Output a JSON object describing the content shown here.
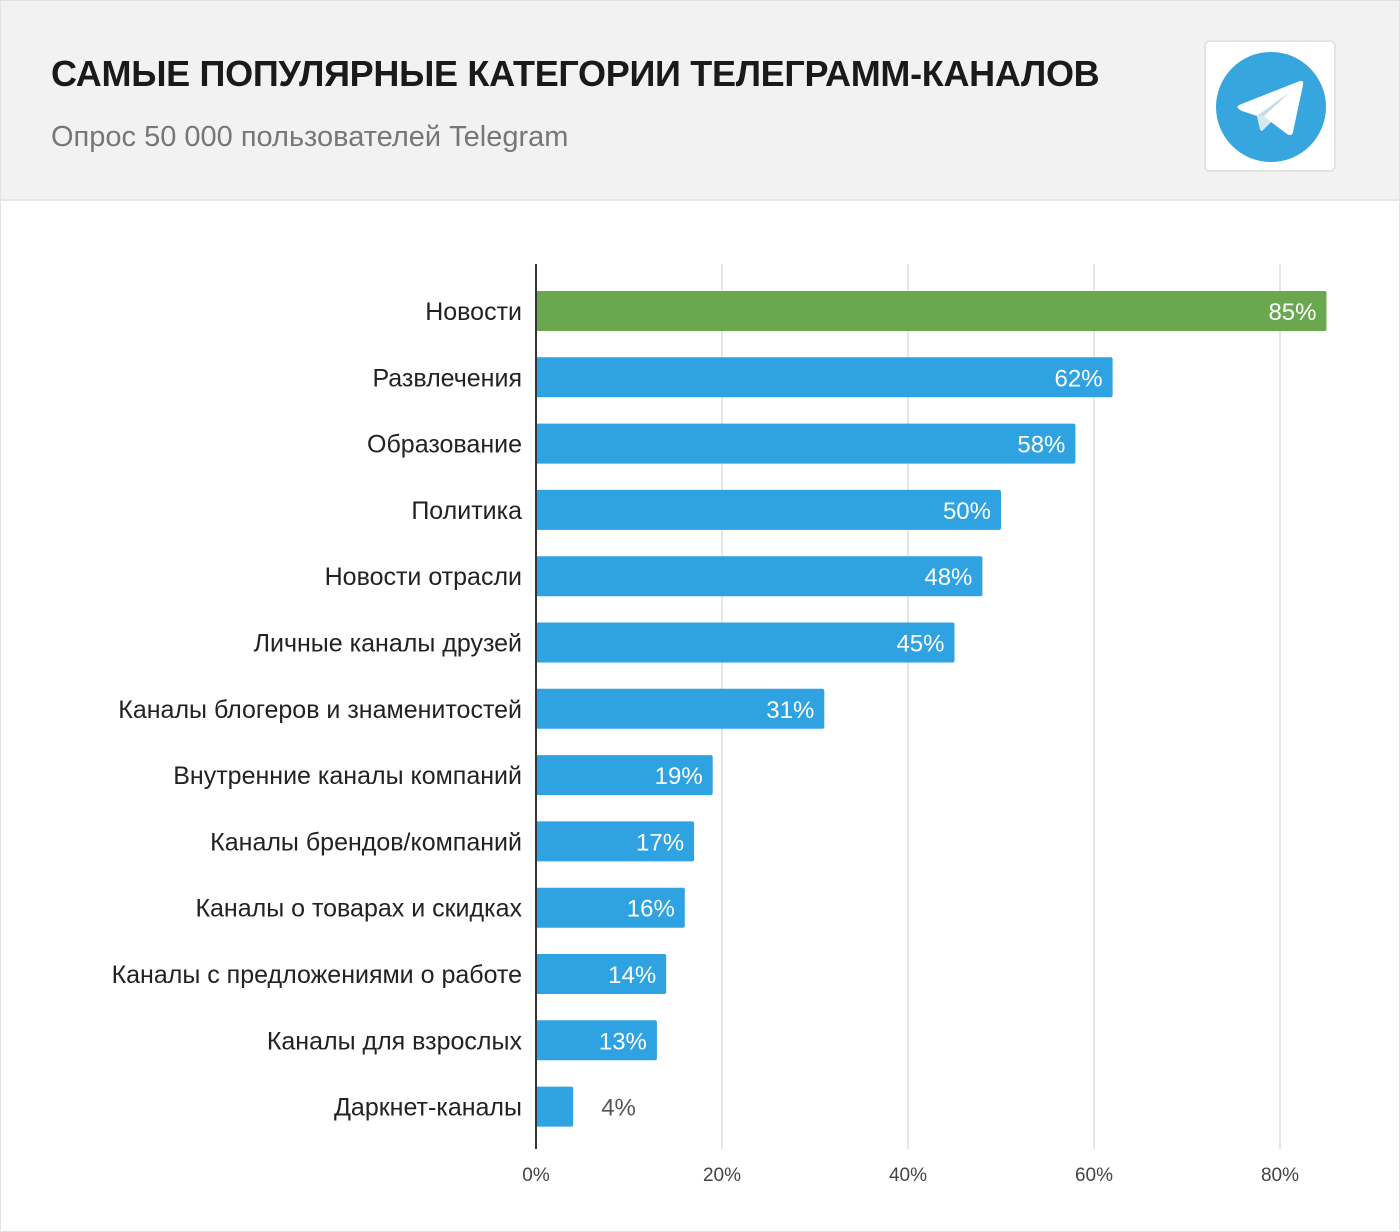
{
  "header": {
    "title": "САМЫЕ ПОПУЛЯРНЫЕ КАТЕГОРИИ ТЕЛЕГРАММ-КАНАЛОВ",
    "subtitle": "Опрос 50 000 пользователей Telegram",
    "logo_icon": "telegram-logo-icon"
  },
  "chart_data": {
    "type": "bar",
    "orientation": "horizontal",
    "title": "САМЫЕ ПОПУЛЯРНЫЕ КАТЕГОРИИ ТЕЛЕГРАММ-КАНАЛОВ",
    "subtitle": "Опрос 50 000 пользователей Telegram",
    "categories": [
      "Новости",
      "Развлечения",
      "Образование",
      "Политика",
      "Новости отрасли",
      "Личные каналы друзей",
      "Каналы блогеров и знаменитостей",
      "Внутренние каналы компаний",
      "Каналы брендов/компаний",
      "Каналы о товарах и скидках",
      "Каналы с предложениями о работе",
      "Каналы для взрослых",
      "Даркнет-каналы"
    ],
    "values": [
      85,
      62,
      58,
      50,
      48,
      45,
      31,
      19,
      17,
      16,
      14,
      13,
      4
    ],
    "value_labels": [
      "85%",
      "62%",
      "58%",
      "50%",
      "48%",
      "45%",
      "31%",
      "19%",
      "17%",
      "16%",
      "14%",
      "13%",
      "4%"
    ],
    "xlim": [
      0,
      85
    ],
    "xticks": [
      0,
      20,
      40,
      60,
      80
    ],
    "xtick_labels": [
      "0%",
      "20%",
      "40%",
      "60%",
      "80%"
    ],
    "grid": "vertical",
    "legend": "none",
    "colors": {
      "highlight": "#6aa84f",
      "bar": "#2fa3e2",
      "label_inside": "#ffffff",
      "label_outside": "#555555",
      "category_text": "#222222",
      "tick_text": "#444444",
      "grid": "#dddddd",
      "axis": "#333333"
    }
  }
}
